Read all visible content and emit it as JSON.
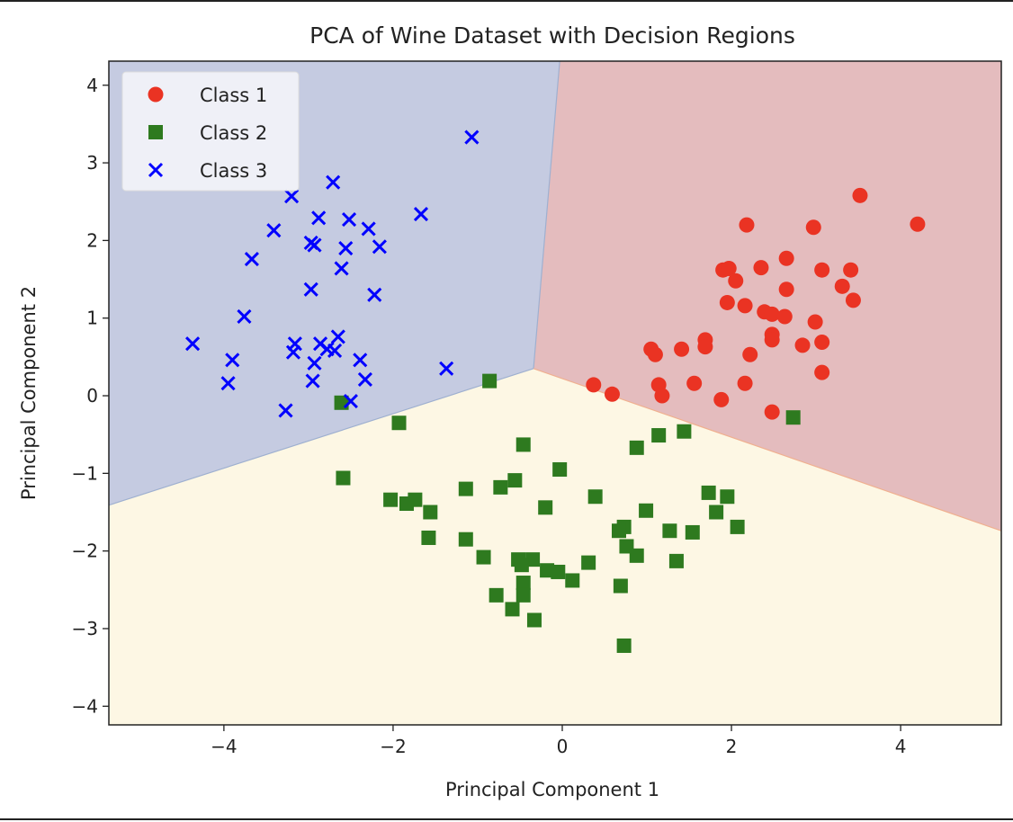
{
  "chart_data": {
    "type": "scatter",
    "title": "PCA of Wine Dataset with Decision Regions",
    "xlabel": "Principal Component 1",
    "ylabel": "Principal Component 2",
    "xlim": [
      -5.36,
      5.19
    ],
    "ylim": [
      -4.24,
      4.31
    ],
    "xticks": [
      -4,
      -2,
      0,
      2,
      4
    ],
    "yticks": [
      -4,
      -3,
      -2,
      -1,
      0,
      1,
      2,
      3,
      4
    ],
    "grid": false,
    "legend_placement": "upper-left",
    "decision_regions": {
      "junction": [
        -0.34,
        0.35
      ],
      "boundary_ends": {
        "class3_class1": [
          -0.03,
          4.31
        ],
        "class3_class2": [
          -5.36,
          -1.41
        ],
        "class1_class2": [
          5.19,
          -1.74
        ]
      },
      "colors": {
        "class1": "#e4bcbe",
        "class2": "#fdf7e4",
        "class3": "#c5cbe1"
      }
    },
    "series": [
      {
        "name": "Class 1",
        "marker": "circle",
        "color": "#ea3323",
        "points": [
          [
            3.52,
            2.58
          ],
          [
            4.2,
            2.21
          ],
          [
            2.18,
            2.2
          ],
          [
            2.97,
            2.17
          ],
          [
            2.65,
            1.77
          ],
          [
            2.35,
            1.65
          ],
          [
            1.9,
            1.62
          ],
          [
            1.97,
            1.64
          ],
          [
            2.05,
            1.48
          ],
          [
            3.07,
            1.62
          ],
          [
            3.41,
            1.62
          ],
          [
            2.65,
            1.37
          ],
          [
            1.95,
            1.2
          ],
          [
            2.16,
            1.16
          ],
          [
            2.39,
            1.08
          ],
          [
            2.48,
            1.05
          ],
          [
            2.63,
            1.02
          ],
          [
            3.31,
            1.41
          ],
          [
            3.44,
            1.23
          ],
          [
            2.99,
            0.95
          ],
          [
            2.48,
            0.79
          ],
          [
            2.48,
            0.72
          ],
          [
            3.07,
            0.69
          ],
          [
            1.69,
            0.72
          ],
          [
            1.69,
            0.63
          ],
          [
            2.84,
            0.65
          ],
          [
            1.41,
            0.6
          ],
          [
            1.05,
            0.6
          ],
          [
            1.1,
            0.53
          ],
          [
            2.22,
            0.53
          ],
          [
            3.07,
            0.3
          ],
          [
            0.37,
            0.14
          ],
          [
            0.59,
            0.02
          ],
          [
            1.14,
            0.14
          ],
          [
            1.18,
            0.0
          ],
          [
            1.56,
            0.16
          ],
          [
            2.16,
            0.16
          ],
          [
            1.88,
            -0.05
          ],
          [
            2.48,
            -0.21
          ]
        ]
      },
      {
        "name": "Class 2",
        "marker": "square",
        "color": "#2e7a1f",
        "points": [
          [
            -0.86,
            0.19
          ],
          [
            -2.61,
            -0.09
          ],
          [
            2.73,
            -0.28
          ],
          [
            -1.93,
            -0.35
          ],
          [
            -0.46,
            -0.63
          ],
          [
            1.44,
            -0.46
          ],
          [
            1.14,
            -0.51
          ],
          [
            0.88,
            -0.67
          ],
          [
            -0.03,
            -0.95
          ],
          [
            -2.59,
            -1.06
          ],
          [
            -0.56,
            -1.09
          ],
          [
            -0.73,
            -1.18
          ],
          [
            -1.14,
            -1.2
          ],
          [
            0.39,
            -1.3
          ],
          [
            1.73,
            -1.25
          ],
          [
            1.95,
            -1.3
          ],
          [
            -2.03,
            -1.34
          ],
          [
            -1.74,
            -1.34
          ],
          [
            -1.84,
            -1.39
          ],
          [
            -0.2,
            -1.44
          ],
          [
            0.99,
            -1.48
          ],
          [
            -1.56,
            -1.5
          ],
          [
            1.82,
            -1.5
          ],
          [
            2.07,
            -1.69
          ],
          [
            0.73,
            -1.69
          ],
          [
            0.67,
            -1.74
          ],
          [
            1.27,
            -1.74
          ],
          [
            1.54,
            -1.76
          ],
          [
            -1.58,
            -1.83
          ],
          [
            -1.14,
            -1.85
          ],
          [
            0.76,
            -1.94
          ],
          [
            0.88,
            -2.06
          ],
          [
            -0.93,
            -2.08
          ],
          [
            -0.52,
            -2.11
          ],
          [
            -0.35,
            -2.11
          ],
          [
            -0.48,
            -2.18
          ],
          [
            0.31,
            -2.15
          ],
          [
            1.35,
            -2.13
          ],
          [
            -0.18,
            -2.25
          ],
          [
            -0.05,
            -2.27
          ],
          [
            0.12,
            -2.38
          ],
          [
            -0.46,
            -2.41
          ],
          [
            0.69,
            -2.45
          ],
          [
            -0.78,
            -2.57
          ],
          [
            -0.46,
            -2.57
          ],
          [
            -0.59,
            -2.75
          ],
          [
            -0.33,
            -2.89
          ],
          [
            0.73,
            -3.22
          ]
        ]
      },
      {
        "name": "Class 3",
        "marker": "x",
        "color": "#0000ff",
        "points": [
          [
            -1.07,
            3.33
          ],
          [
            -2.71,
            2.75
          ],
          [
            -3.2,
            2.57
          ],
          [
            -1.67,
            2.34
          ],
          [
            -2.88,
            2.29
          ],
          [
            -2.52,
            2.27
          ],
          [
            -3.41,
            2.13
          ],
          [
            -2.29,
            2.15
          ],
          [
            -2.97,
            1.97
          ],
          [
            -2.93,
            1.94
          ],
          [
            -2.56,
            1.9
          ],
          [
            -2.16,
            1.92
          ],
          [
            -3.67,
            1.76
          ],
          [
            -2.61,
            1.64
          ],
          [
            -2.22,
            1.3
          ],
          [
            -2.97,
            1.37
          ],
          [
            -3.76,
            1.02
          ],
          [
            -4.37,
            0.67
          ],
          [
            -2.65,
            0.76
          ],
          [
            -3.16,
            0.67
          ],
          [
            -2.86,
            0.67
          ],
          [
            -2.78,
            0.6
          ],
          [
            -2.69,
            0.58
          ],
          [
            -3.18,
            0.56
          ],
          [
            -3.9,
            0.46
          ],
          [
            -2.39,
            0.46
          ],
          [
            -2.93,
            0.42
          ],
          [
            -1.37,
            0.35
          ],
          [
            -2.33,
            0.21
          ],
          [
            -2.95,
            0.19
          ],
          [
            -3.95,
            0.16
          ],
          [
            -2.5,
            -0.07
          ],
          [
            -3.27,
            -0.19
          ]
        ]
      }
    ]
  }
}
